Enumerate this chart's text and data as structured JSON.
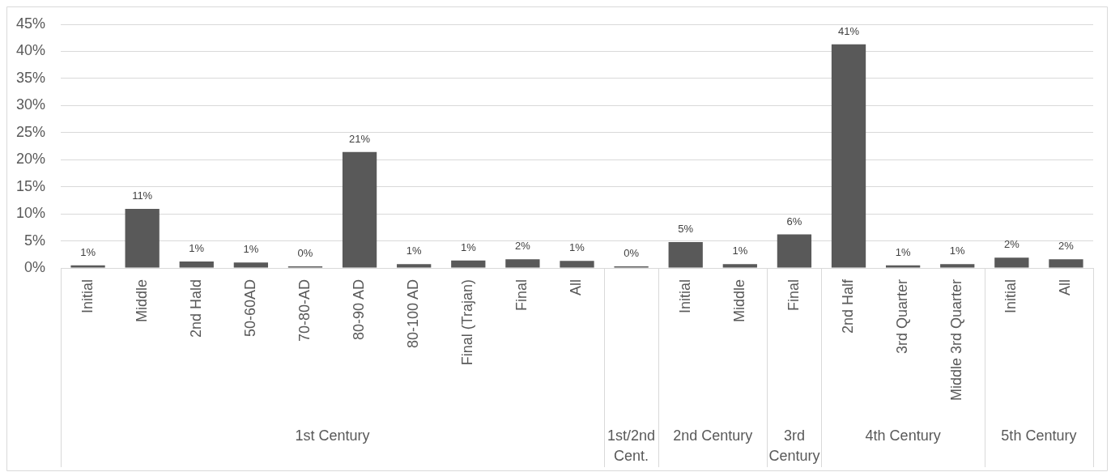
{
  "chart_data": {
    "type": "bar",
    "categories": [
      "Initial",
      "Middle",
      "2nd Hald",
      "50-60AD",
      "70-80-AD",
      "80-90 AD",
      "80-100 AD",
      "Final (Trajan)",
      "Final",
      "All",
      null,
      "Initial",
      "Middle",
      "Final",
      "2nd Half",
      "3rd Quarter",
      "Middle 3rd Quarter",
      "Initial",
      "All"
    ],
    "values": [
      0.5,
      10.9,
      1.2,
      1.0,
      0.3,
      21.4,
      0.7,
      1.4,
      1.6,
      1.3,
      0.3,
      4.8,
      0.7,
      6.2,
      41.3,
      0.5,
      0.7,
      1.9,
      1.6
    ],
    "value_labels": [
      "1%",
      "11%",
      "1%",
      "1%",
      "0%",
      "21%",
      "1%",
      "1%",
      "2%",
      "1%",
      "0%",
      "5%",
      "1%",
      "6%",
      "41%",
      "1%",
      "1%",
      "2%",
      "2%"
    ],
    "color": "#595959",
    "ylim": [
      0,
      45
    ],
    "yticks": [
      {
        "value": 0,
        "label": "0%"
      },
      {
        "value": 5,
        "label": "5%"
      },
      {
        "value": 10,
        "label": "10%"
      },
      {
        "value": 15,
        "label": "15%"
      },
      {
        "value": 20,
        "label": "20%"
      },
      {
        "value": 25,
        "label": "25%"
      },
      {
        "value": 30,
        "label": "30%"
      },
      {
        "value": 35,
        "label": "35%"
      },
      {
        "value": 40,
        "label": "40%"
      },
      {
        "value": 45,
        "label": "45%"
      }
    ],
    "grid": "y",
    "annotations": [
      "1st Century",
      "1st/2nd Cent.",
      "2nd Century",
      "3rd Century",
      "4th Century",
      "5th Century"
    ]
  }
}
